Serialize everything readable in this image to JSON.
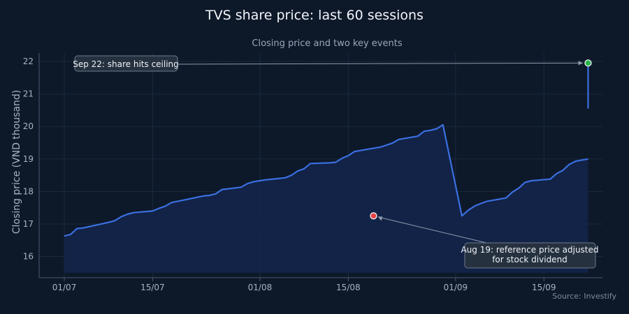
{
  "colors": {
    "background": "#0d1829",
    "line": "#3b6fe0",
    "area": "#13254a",
    "ceiling_marker": "#27b34a",
    "event_marker": "#e64545",
    "annotation_box": "#25313f",
    "annotation_border": "#6d7a8c"
  },
  "chart_data": {
    "type": "line",
    "title": "TVS share price: last 60 sessions",
    "subtitle": "Closing price and two key events",
    "ylabel": "Closing price (VND thousand)",
    "xlabel": "",
    "source": "Source: Investify",
    "ylim": [
      15.5,
      22.3
    ],
    "yticks": [
      16,
      17,
      18,
      19,
      20,
      21,
      22
    ],
    "x_ticks": [
      {
        "date": "2024-07-01",
        "label": "01/07"
      },
      {
        "date": "2024-07-15",
        "label": "15/07"
      },
      {
        "date": "2024-08-01",
        "label": "01/08"
      },
      {
        "date": "2024-08-15",
        "label": "15/08"
      },
      {
        "date": "2024-09-01",
        "label": "01/09"
      },
      {
        "date": "2024-09-15",
        "label": "15/09"
      }
    ],
    "series": [
      {
        "name": "",
        "x": [
          "2024-07-01",
          "2024-07-02",
          "2024-07-03",
          "2024-07-04",
          "2024-07-05",
          "2024-07-08",
          "2024-07-09",
          "2024-07-10",
          "2024-07-11",
          "2024-07-12",
          "2024-07-15",
          "2024-07-16",
          "2024-07-17",
          "2024-07-18",
          "2024-07-19",
          "2024-07-22",
          "2024-07-23",
          "2024-07-24",
          "2024-07-25",
          "2024-07-26",
          "2024-07-29",
          "2024-07-30",
          "2024-07-31",
          "2024-08-01",
          "2024-08-02",
          "2024-08-05",
          "2024-08-06",
          "2024-08-07",
          "2024-08-08",
          "2024-08-09",
          "2024-08-12",
          "2024-08-13",
          "2024-08-14",
          "2024-08-15",
          "2024-08-16",
          "2024-08-19",
          "2024-08-20",
          "2024-08-21",
          "2024-08-22",
          "2024-08-23",
          "2024-08-26",
          "2024-08-27",
          "2024-08-28",
          "2024-08-29",
          "2024-08-30",
          "2024-09-02",
          "2024-09-03",
          "2024-09-04",
          "2024-09-05",
          "2024-09-06",
          "2024-09-09",
          "2024-09-10",
          "2024-09-11",
          "2024-09-12",
          "2024-09-13",
          "2024-09-16",
          "2024-09-17",
          "2024-09-18",
          "2024-09-19",
          "2024-09-20",
          "2024-09-22"
        ],
        "values": [
          16.63,
          16.68,
          16.86,
          16.88,
          16.92,
          17.05,
          17.1,
          17.22,
          17.3,
          17.35,
          17.4,
          17.48,
          17.55,
          17.66,
          17.7,
          17.82,
          17.86,
          17.88,
          17.93,
          18.06,
          18.13,
          18.24,
          18.3,
          18.33,
          18.36,
          18.42,
          18.5,
          18.63,
          18.7,
          18.86,
          18.88,
          18.9,
          19.02,
          19.1,
          19.23,
          19.33,
          19.36,
          19.42,
          19.49,
          19.6,
          19.7,
          19.85,
          19.88,
          19.93,
          20.05,
          17.25,
          17.42,
          17.55,
          17.63,
          17.7,
          17.8,
          17.98,
          18.1,
          18.28,
          18.33,
          18.38,
          18.55,
          18.65,
          18.83,
          18.93,
          19.0
        ]
      }
    ],
    "annotations": [
      {
        "date": "2024-08-19",
        "value": 17.25,
        "text": [
          "Aug 19: reference price adjusted",
          "for stock dividend"
        ]
      },
      {
        "date": "2024-09-22",
        "value": 21.95,
        "text": [
          "Sep 22: share hits ceiling"
        ]
      }
    ]
  }
}
